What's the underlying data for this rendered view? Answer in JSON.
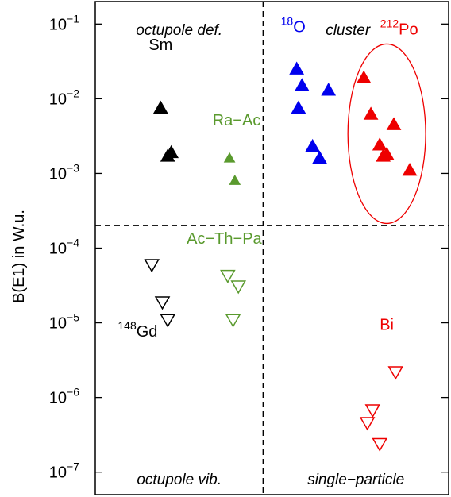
{
  "chart_data": {
    "type": "scatter",
    "title": "",
    "ylabel": "B(E1) in W.u.",
    "xlabel": "",
    "yscale": "log",
    "ylim": [
      5e-08,
      0.2
    ],
    "xlim": [
      0,
      100
    ],
    "grid": false,
    "yticks": [
      {
        "value": 1e-07,
        "label": "10",
        "exp": "−7"
      },
      {
        "value": 1e-06,
        "label": "10",
        "exp": "−6"
      },
      {
        "value": 1e-05,
        "label": "10",
        "exp": "−5"
      },
      {
        "value": 0.0001,
        "label": "10",
        "exp": "−4"
      },
      {
        "value": 0.001,
        "label": "10",
        "exp": "−3"
      },
      {
        "value": 0.01,
        "label": "10",
        "exp": "−2"
      },
      {
        "value": 0.1,
        "label": "10",
        "exp": "−1"
      }
    ],
    "dividers": {
      "x": 47.5,
      "y": 0.0002
    },
    "quadrant_labels": {
      "top_left": "octupole def.",
      "top_right": "cluster",
      "bottom_left": "octupole vib.",
      "bottom_right": "single−particle"
    },
    "colors": {
      "black": "#000000",
      "green": "#5a9a2e",
      "blue": "#0000ee",
      "red": "#ee0000",
      "axis": "#000000"
    },
    "series": [
      {
        "group_label": "Sm",
        "marker": "triangle-up",
        "filled": true,
        "color": "black",
        "size": "large",
        "x": [
          18.5,
          20.5,
          21.5
        ],
        "y": [
          0.0075,
          0.0017,
          0.0019
        ]
      },
      {
        "group_label": "Ra−Ac",
        "marker": "triangle-up",
        "filled": true,
        "color": "green",
        "size": "small",
        "x": [
          38,
          39.5
        ],
        "y": [
          0.0016,
          0.0008
        ]
      },
      {
        "group_label": "18|O",
        "marker": "triangle-up",
        "filled": true,
        "color": "blue",
        "size": "large",
        "x": [
          57,
          57.5,
          58.5,
          61.5,
          63.5,
          66
        ],
        "y": [
          0.025,
          0.0075,
          0.015,
          0.0023,
          0.0016,
          0.013
        ]
      },
      {
        "group_label": "212|Po",
        "marker": "triangle-up",
        "filled": true,
        "color": "red",
        "size": "large",
        "x": [
          76,
          78,
          80.5,
          81.5,
          82.5,
          84.5,
          89
        ],
        "y": [
          0.019,
          0.0062,
          0.0024,
          0.0017,
          0.0018,
          0.0045,
          0.0011
        ]
      },
      {
        "group_label": "148|Gd",
        "marker": "triangle-down",
        "filled": false,
        "color": "black",
        "size": "large",
        "x": [
          16,
          19,
          20.5
        ],
        "y": [
          6e-05,
          1.9e-05,
          1.1e-05
        ]
      },
      {
        "group_label": "Ac−Th−Pa",
        "marker": "triangle-down",
        "filled": false,
        "color": "green",
        "size": "large",
        "x": [
          37.5,
          39,
          40.5
        ],
        "y": [
          4.3e-05,
          1.1e-05,
          3.1e-05
        ]
      },
      {
        "group_label": "Bi",
        "marker": "triangle-down",
        "filled": false,
        "color": "red",
        "size": "large",
        "x": [
          77,
          78.5,
          80.5,
          85
        ],
        "y": [
          4.6e-07,
          6.8e-07,
          2.4e-07,
          2.2e-06
        ]
      }
    ],
    "annotations": [
      {
        "text": "Sm",
        "sup": "",
        "x": 18.5,
        "y": 0.045,
        "color": "black"
      },
      {
        "text": "Ra−Ac",
        "sup": "",
        "x": 40,
        "y": 0.0044,
        "color": "green"
      },
      {
        "text": "Ac−Th−Pa",
        "sup": "",
        "x": 36.5,
        "y": 0.000115,
        "color": "green"
      },
      {
        "text": "Gd",
        "sup": "148",
        "x": 12,
        "y": 6.5e-06,
        "color": "black"
      },
      {
        "text": "O",
        "sup": "18",
        "x": 56,
        "y": 0.078,
        "color": "blue"
      },
      {
        "text": "Po",
        "sup": "212",
        "x": 86,
        "y": 0.072,
        "color": "red"
      },
      {
        "text": "Bi",
        "sup": "",
        "x": 82.5,
        "y": 8e-06,
        "color": "red"
      }
    ],
    "highlight_ellipse": {
      "cx": 82.5,
      "cy": 0.0034,
      "rx_x": 11,
      "ry_decades": 1.55,
      "color": "red"
    }
  }
}
